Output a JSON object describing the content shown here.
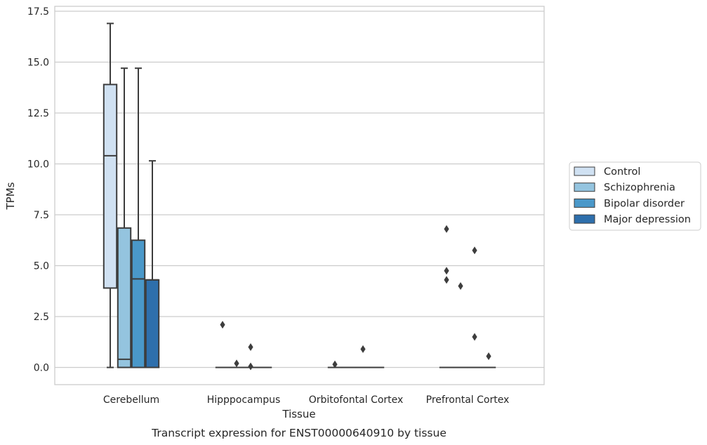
{
  "chart_data": {
    "type": "boxplot",
    "xlabel": "Tissue",
    "ylabel": "TPMs",
    "caption": "Transcript expression for ENST00000640910 by tissue",
    "ylim": [
      -0.8,
      17.7
    ],
    "yticks": [
      "0.0",
      "2.5",
      "5.0",
      "7.5",
      "10.0",
      "12.5",
      "15.0",
      "17.5"
    ],
    "ytick_values": [
      0,
      2.5,
      5,
      7.5,
      10,
      12.5,
      15,
      17.5
    ],
    "grid": "horizontal",
    "legend_position": "right",
    "categories": [
      "Cerebellum",
      "Hipppocampus",
      "Orbitofontal Cortex",
      "Prefrontal Cortex"
    ],
    "series": [
      {
        "name": "Control",
        "color": "#d0e1f2",
        "boxes": [
          {
            "min": 0.0,
            "q1": 3.9,
            "median": 10.4,
            "q3": 13.9,
            "max": 16.9,
            "outliers": []
          },
          {
            "min": 0.0,
            "q1": 0.0,
            "median": 0.0,
            "q3": 0.0,
            "max": 0.0,
            "outliers": [
              2.1
            ]
          },
          {
            "min": 0.0,
            "q1": 0.0,
            "median": 0.0,
            "q3": 0.0,
            "max": 0.0,
            "outliers": [
              0.15
            ]
          },
          {
            "min": 0.0,
            "q1": 0.0,
            "median": 0.0,
            "q3": 0.0,
            "max": 0.0,
            "outliers": [
              6.8,
              4.75,
              4.3
            ]
          }
        ]
      },
      {
        "name": "Schizophrenia",
        "color": "#94c4df",
        "boxes": [
          {
            "min": 0.0,
            "q1": 0.0,
            "median": 0.4,
            "q3": 6.85,
            "max": 14.7,
            "outliers": []
          },
          {
            "min": 0.0,
            "q1": 0.0,
            "median": 0.0,
            "q3": 0.0,
            "max": 0.0,
            "outliers": [
              0.2
            ]
          },
          {
            "min": 0.0,
            "q1": 0.0,
            "median": 0.0,
            "q3": 0.0,
            "max": 0.0,
            "outliers": []
          },
          {
            "min": 0.0,
            "q1": 0.0,
            "median": 0.0,
            "q3": 0.0,
            "max": 0.0,
            "outliers": [
              4.0
            ]
          }
        ]
      },
      {
        "name": "Bipolar disorder",
        "color": "#4a98c9",
        "boxes": [
          {
            "min": 0.0,
            "q1": 0.0,
            "median": 4.35,
            "q3": 6.25,
            "max": 14.7,
            "outliers": []
          },
          {
            "min": 0.0,
            "q1": 0.0,
            "median": 0.0,
            "q3": 0.0,
            "max": 0.0,
            "outliers": [
              1.0,
              0.05
            ]
          },
          {
            "min": 0.0,
            "q1": 0.0,
            "median": 0.0,
            "q3": 0.0,
            "max": 0.0,
            "outliers": [
              0.9
            ]
          },
          {
            "min": 0.0,
            "q1": 0.0,
            "median": 0.0,
            "q3": 0.0,
            "max": 0.0,
            "outliers": [
              5.75,
              1.5
            ]
          }
        ]
      },
      {
        "name": "Major depression",
        "color": "#2e6fac",
        "boxes": [
          {
            "min": 0.0,
            "q1": 0.0,
            "median": 4.3,
            "q3": 4.3,
            "max": 10.15,
            "outliers": []
          },
          {
            "min": 0.0,
            "q1": 0.0,
            "median": 0.0,
            "q3": 0.0,
            "max": 0.0,
            "outliers": []
          },
          {
            "min": 0.0,
            "q1": 0.0,
            "median": 0.0,
            "q3": 0.0,
            "max": 0.0,
            "outliers": []
          },
          {
            "min": 0.0,
            "q1": 0.0,
            "median": 0.0,
            "q3": 0.0,
            "max": 0.0,
            "outliers": [
              0.55
            ]
          }
        ]
      }
    ]
  }
}
